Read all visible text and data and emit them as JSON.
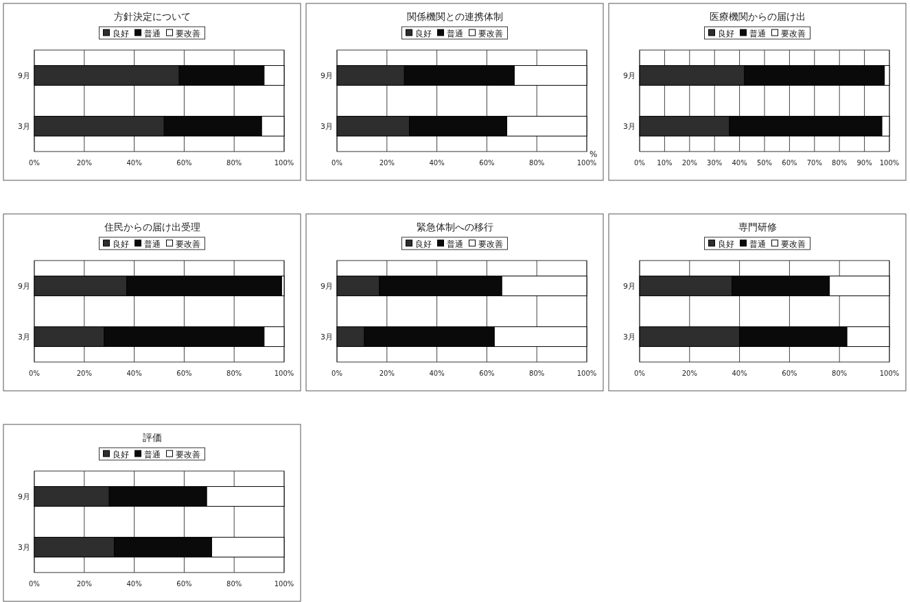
{
  "chart_data": [
    {
      "type": "bar",
      "orientation": "horizontal",
      "stacked": true,
      "title": "方針決定について",
      "categories": [
        "9月",
        "3月"
      ],
      "legend": "top",
      "grid": "x",
      "xlim": [
        0,
        100
      ],
      "xticks": [
        {
          "value": 0,
          "label": "0%"
        },
        {
          "value": 20,
          "label": "20%"
        },
        {
          "value": 40,
          "label": "40%"
        },
        {
          "value": 60,
          "label": "60%"
        },
        {
          "value": 80,
          "label": "80%"
        },
        {
          "value": 100,
          "label": "100%"
        }
      ],
      "series": [
        {
          "name": "良好",
          "color": "#2e2e2e",
          "values": [
            58,
            52
          ]
        },
        {
          "name": "普通",
          "color": "#0a0a0a",
          "values": [
            34,
            39
          ]
        },
        {
          "name": "要改善",
          "color": "#ffffff",
          "values": [
            8,
            9
          ]
        }
      ]
    },
    {
      "type": "bar",
      "orientation": "horizontal",
      "stacked": true,
      "title": "関係機関との連携体制",
      "categories": [
        "9月",
        "3月"
      ],
      "legend": "top",
      "grid": "x",
      "xlim": [
        0,
        100
      ],
      "xticks": [
        {
          "value": 0,
          "label": "0%"
        },
        {
          "value": 20,
          "label": "20%"
        },
        {
          "value": 40,
          "label": "40%"
        },
        {
          "value": 60,
          "label": "60%"
        },
        {
          "value": 80,
          "label": "80%"
        },
        {
          "value": 100,
          "label": "100%"
        }
      ],
      "annotations": [
        "%"
      ],
      "series": [
        {
          "name": "良好",
          "color": "#2e2e2e",
          "values": [
            27,
            29
          ]
        },
        {
          "name": "普通",
          "color": "#0a0a0a",
          "values": [
            44,
            39
          ]
        },
        {
          "name": "要改善",
          "color": "#ffffff",
          "values": [
            29,
            32
          ]
        }
      ]
    },
    {
      "type": "bar",
      "orientation": "horizontal",
      "stacked": true,
      "title": "医療機関からの届け出",
      "categories": [
        "9月",
        "3月"
      ],
      "legend": "top",
      "grid": "x",
      "xlim": [
        0,
        100
      ],
      "xticks": [
        {
          "value": 0,
          "label": "0%"
        },
        {
          "value": 10,
          "label": "10%"
        },
        {
          "value": 20,
          "label": "20%"
        },
        {
          "value": 30,
          "label": "30%"
        },
        {
          "value": 40,
          "label": "40%"
        },
        {
          "value": 50,
          "label": "50%"
        },
        {
          "value": 60,
          "label": "60%"
        },
        {
          "value": 70,
          "label": "70%"
        },
        {
          "value": 80,
          "label": "80%"
        },
        {
          "value": 90,
          "label": "90%"
        },
        {
          "value": 100,
          "label": "100%"
        }
      ],
      "series": [
        {
          "name": "良好",
          "color": "#2e2e2e",
          "values": [
            42,
            36
          ]
        },
        {
          "name": "普通",
          "color": "#0a0a0a",
          "values": [
            56,
            61
          ]
        },
        {
          "name": "要改善",
          "color": "#ffffff",
          "values": [
            2,
            3
          ]
        }
      ]
    },
    {
      "type": "bar",
      "orientation": "horizontal",
      "stacked": true,
      "title": "住民からの届け出受理",
      "categories": [
        "9月",
        "3月"
      ],
      "legend": "top",
      "grid": "x",
      "xlim": [
        0,
        100
      ],
      "xticks": [
        {
          "value": 0,
          "label": "0%"
        },
        {
          "value": 20,
          "label": "20%"
        },
        {
          "value": 40,
          "label": "40%"
        },
        {
          "value": 60,
          "label": "60%"
        },
        {
          "value": 80,
          "label": "80%"
        },
        {
          "value": 100,
          "label": "100%"
        }
      ],
      "series": [
        {
          "name": "良好",
          "color": "#2e2e2e",
          "values": [
            37,
            28
          ]
        },
        {
          "name": "普通",
          "color": "#0a0a0a",
          "values": [
            62,
            64
          ]
        },
        {
          "name": "要改善",
          "color": "#ffffff",
          "values": [
            1,
            8
          ]
        }
      ]
    },
    {
      "type": "bar",
      "orientation": "horizontal",
      "stacked": true,
      "title": "緊急体制への移行",
      "categories": [
        "9月",
        "3月"
      ],
      "legend": "top",
      "grid": "x",
      "xlim": [
        0,
        100
      ],
      "xticks": [
        {
          "value": 0,
          "label": "0%"
        },
        {
          "value": 20,
          "label": "20%"
        },
        {
          "value": 40,
          "label": "40%"
        },
        {
          "value": 60,
          "label": "60%"
        },
        {
          "value": 80,
          "label": "80%"
        },
        {
          "value": 100,
          "label": "100%"
        }
      ],
      "series": [
        {
          "name": "良好",
          "color": "#2e2e2e",
          "values": [
            17,
            11
          ]
        },
        {
          "name": "普通",
          "color": "#0a0a0a",
          "values": [
            49,
            52
          ]
        },
        {
          "name": "要改善",
          "color": "#ffffff",
          "values": [
            34,
            37
          ]
        }
      ]
    },
    {
      "type": "bar",
      "orientation": "horizontal",
      "stacked": true,
      "title": "専門研修",
      "categories": [
        "9月",
        "3月"
      ],
      "legend": "top",
      "grid": "x",
      "xlim": [
        0,
        100
      ],
      "xticks": [
        {
          "value": 0,
          "label": "0%"
        },
        {
          "value": 20,
          "label": "20%"
        },
        {
          "value": 40,
          "label": "40%"
        },
        {
          "value": 60,
          "label": "60%"
        },
        {
          "value": 80,
          "label": "80%"
        },
        {
          "value": 100,
          "label": "100%"
        }
      ],
      "series": [
        {
          "name": "良好",
          "color": "#2e2e2e",
          "values": [
            37,
            40
          ]
        },
        {
          "name": "普通",
          "color": "#0a0a0a",
          "values": [
            39,
            43
          ]
        },
        {
          "name": "要改善",
          "color": "#ffffff",
          "values": [
            24,
            17
          ]
        }
      ]
    },
    {
      "type": "bar",
      "orientation": "horizontal",
      "stacked": true,
      "title": "評価",
      "categories": [
        "9月",
        "3月"
      ],
      "legend": "top",
      "grid": "x",
      "xlim": [
        0,
        100
      ],
      "xticks": [
        {
          "value": 0,
          "label": "0%"
        },
        {
          "value": 20,
          "label": "20%"
        },
        {
          "value": 40,
          "label": "40%"
        },
        {
          "value": 60,
          "label": "60%"
        },
        {
          "value": 80,
          "label": "80%"
        },
        {
          "value": 100,
          "label": "100%"
        }
      ],
      "series": [
        {
          "name": "良好",
          "color": "#2e2e2e",
          "values": [
            30,
            32
          ]
        },
        {
          "name": "普通",
          "color": "#0a0a0a",
          "values": [
            39,
            39
          ]
        },
        {
          "name": "要改善",
          "color": "#ffffff",
          "values": [
            31,
            29
          ]
        }
      ]
    }
  ]
}
